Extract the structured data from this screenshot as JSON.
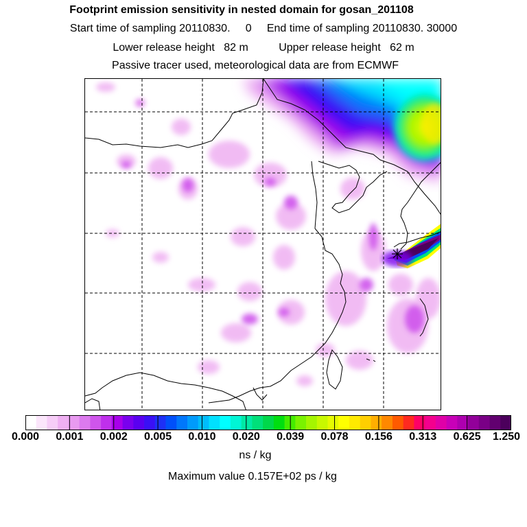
{
  "header": {
    "title": "Footprint emission sensitivity in nested domain for gosan_201108",
    "sampling_line": "Start time of sampling 20110830.     0     End time of sampling 20110830. 30000",
    "release_line": "Lower release height   82 m          Upper release height   62 m",
    "tracer_line": "Passive tracer used, meteorological data are from ECMWF"
  },
  "colorbar": {
    "tick_labels": [
      "0.000",
      "0.001",
      "0.002",
      "0.005",
      "0.010",
      "0.020",
      "0.039",
      "0.078",
      "0.156",
      "0.313",
      "0.625",
      "1.250"
    ],
    "units": "ns / kg",
    "max_value_text": "Maximum value  0.157E+02 ps / kg",
    "colors": [
      "#ffffff",
      "#fbe6fb",
      "#f6cdf7",
      "#efb0f2",
      "#e89af0",
      "#dc7aee",
      "#cf55ec",
      "#bf30ec",
      "#a800ea",
      "#7a00ee",
      "#5a00f0",
      "#3a10f5",
      "#1e30f7",
      "#0050fa",
      "#0077fb",
      "#009bfc",
      "#00bdfd",
      "#00e0fe",
      "#00ffff",
      "#00f5d5",
      "#00eaa5",
      "#00e07a",
      "#00d84a",
      "#00de10",
      "#44ec00",
      "#7af200",
      "#a5f500",
      "#c8f800",
      "#e6fa00",
      "#ffff00",
      "#ffea00",
      "#ffcf00",
      "#ffaf00",
      "#ff8800",
      "#ff5a00",
      "#ff2a20",
      "#ff0066",
      "#f4008e",
      "#e000a8",
      "#c800b8",
      "#ae00b0",
      "#92009a",
      "#7a0086",
      "#620070",
      "#4c005c"
    ]
  },
  "map": {
    "accent_colors": {
      "low": "#e89af0",
      "mid": "#00e0fe",
      "high": "#4c005c",
      "receptor": "#000000"
    },
    "receptor_icon": "asterisk-marker-icon"
  }
}
